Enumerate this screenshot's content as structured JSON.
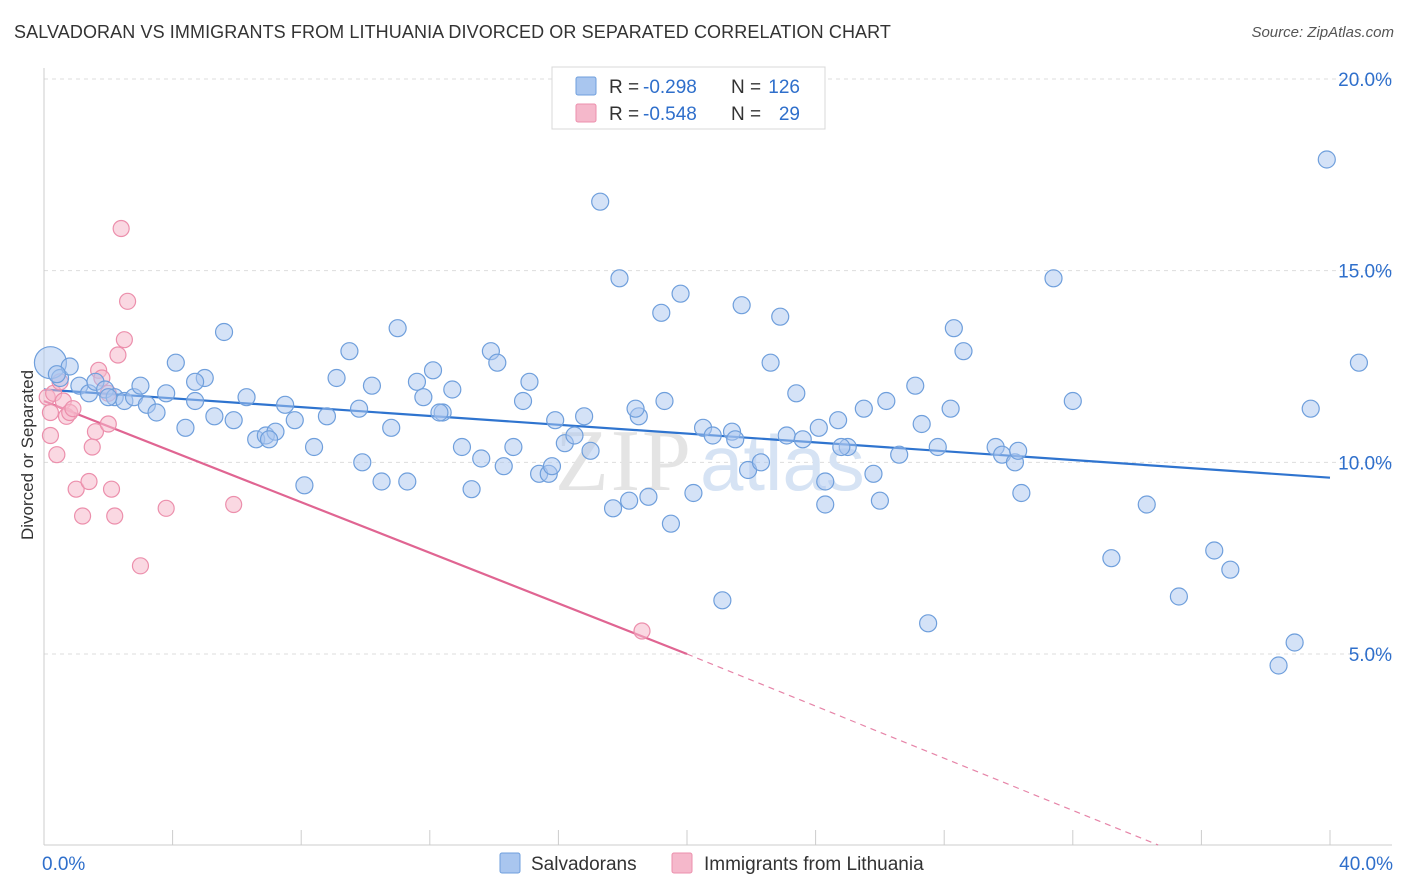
{
  "header": {
    "title": "SALVADORAN VS IMMIGRANTS FROM LITHUANIA DIVORCED OR SEPARATED CORRELATION CHART",
    "source": "Source: ZipAtlas.com"
  },
  "legend_top": {
    "rows": [
      {
        "r_label": "R =",
        "r_value": "-0.298",
        "n_label": "N =",
        "n_value": "126"
      },
      {
        "r_label": "R =",
        "r_value": "-0.548",
        "n_label": "N =",
        "n_value": "29"
      }
    ]
  },
  "legend_bottom": {
    "items": [
      "Salvadorans",
      "Immigrants from Lithuania"
    ]
  },
  "watermark": {
    "zip": "ZIP",
    "atlas": "atlas"
  },
  "colors": {
    "blue_fill": "#a9c6ef",
    "blue_stroke": "#6f9fdc",
    "blue_line": "#2f74cf",
    "pink_fill": "#f5b8cb",
    "pink_stroke": "#ec8fac",
    "pink_line": "#e06592",
    "value_text": "#2f6fcb",
    "grid": "#dddddd"
  },
  "chart_data": {
    "type": "scatter",
    "title": "SALVADORAN VS IMMIGRANTS FROM LITHUANIA DIVORCED OR SEPARATED CORRELATION CHART",
    "xlabel": "",
    "ylabel": "Divorced or Separated",
    "xlim": [
      0,
      40
    ],
    "ylim": [
      0,
      20.5
    ],
    "x_tick_labels": [
      "0.0%",
      "40.0%"
    ],
    "y_ticks": [
      5,
      10,
      15,
      20
    ],
    "y_tick_labels": [
      "5.0%",
      "10.0%",
      "15.0%",
      "20.0%"
    ],
    "grid": true,
    "legend_position": "bottom",
    "series": [
      {
        "name": "Salvadorans",
        "color": "#a9c6ef",
        "trend": {
          "x": [
            0,
            40
          ],
          "y": [
            11.9,
            9.6
          ],
          "style": "solid"
        },
        "points": [
          [
            0.2,
            12.6
          ],
          [
            0.5,
            12.2
          ],
          [
            0.8,
            12.5
          ],
          [
            1.1,
            12.0
          ],
          [
            1.4,
            11.8
          ],
          [
            1.6,
            12.1
          ],
          [
            1.9,
            11.9
          ],
          [
            2.2,
            11.7
          ],
          [
            2.5,
            11.6
          ],
          [
            2.8,
            11.7
          ],
          [
            3.0,
            12.0
          ],
          [
            3.2,
            11.5
          ],
          [
            3.5,
            11.3
          ],
          [
            3.8,
            11.8
          ],
          [
            4.1,
            12.6
          ],
          [
            4.4,
            10.9
          ],
          [
            4.7,
            11.6
          ],
          [
            5.0,
            12.2
          ],
          [
            5.3,
            11.2
          ],
          [
            5.6,
            13.4
          ],
          [
            5.9,
            11.1
          ],
          [
            6.3,
            11.7
          ],
          [
            6.6,
            10.6
          ],
          [
            6.9,
            10.7
          ],
          [
            7.2,
            10.8
          ],
          [
            7.5,
            11.5
          ],
          [
            7.8,
            11.1
          ],
          [
            8.1,
            9.4
          ],
          [
            8.4,
            10.4
          ],
          [
            8.8,
            11.2
          ],
          [
            9.1,
            12.2
          ],
          [
            9.5,
            12.9
          ],
          [
            9.9,
            10.0
          ],
          [
            10.2,
            12.0
          ],
          [
            10.5,
            9.5
          ],
          [
            10.8,
            10.9
          ],
          [
            11.0,
            13.5
          ],
          [
            11.3,
            9.5
          ],
          [
            11.6,
            12.1
          ],
          [
            11.8,
            11.7
          ],
          [
            12.1,
            12.4
          ],
          [
            12.4,
            11.3
          ],
          [
            12.7,
            11.9
          ],
          [
            13.0,
            10.4
          ],
          [
            13.3,
            9.3
          ],
          [
            13.6,
            10.1
          ],
          [
            13.9,
            12.9
          ],
          [
            14.1,
            12.6
          ],
          [
            14.3,
            9.9
          ],
          [
            14.6,
            10.4
          ],
          [
            14.9,
            11.6
          ],
          [
            15.1,
            12.1
          ],
          [
            15.4,
            9.7
          ],
          [
            15.7,
            9.7
          ],
          [
            15.9,
            11.1
          ],
          [
            16.2,
            10.5
          ],
          [
            16.5,
            10.7
          ],
          [
            16.8,
            11.2
          ],
          [
            17.0,
            10.3
          ],
          [
            17.3,
            16.8
          ],
          [
            17.7,
            8.8
          ],
          [
            17.9,
            14.8
          ],
          [
            18.2,
            9.0
          ],
          [
            18.5,
            11.2
          ],
          [
            18.8,
            9.1
          ],
          [
            19.2,
            13.9
          ],
          [
            19.3,
            11.6
          ],
          [
            19.5,
            8.4
          ],
          [
            19.8,
            14.4
          ],
          [
            20.2,
            9.2
          ],
          [
            20.5,
            10.9
          ],
          [
            20.8,
            10.7
          ],
          [
            21.1,
            6.4
          ],
          [
            21.4,
            10.8
          ],
          [
            21.7,
            14.1
          ],
          [
            21.9,
            9.8
          ],
          [
            22.3,
            10.0
          ],
          [
            22.6,
            12.6
          ],
          [
            22.9,
            13.8
          ],
          [
            23.1,
            10.7
          ],
          [
            23.4,
            11.8
          ],
          [
            23.6,
            10.6
          ],
          [
            24.1,
            10.9
          ],
          [
            24.3,
            9.5
          ],
          [
            24.3,
            8.9
          ],
          [
            24.7,
            11.1
          ],
          [
            25.0,
            10.4
          ],
          [
            25.5,
            11.4
          ],
          [
            25.8,
            9.7
          ],
          [
            26.0,
            9.0
          ],
          [
            26.2,
            11.6
          ],
          [
            26.6,
            10.2
          ],
          [
            27.1,
            12.0
          ],
          [
            27.5,
            5.8
          ],
          [
            27.8,
            10.4
          ],
          [
            28.2,
            11.4
          ],
          [
            28.3,
            13.5
          ],
          [
            28.6,
            12.9
          ],
          [
            29.6,
            10.4
          ],
          [
            29.8,
            10.2
          ],
          [
            30.2,
            10.0
          ],
          [
            30.4,
            9.2
          ],
          [
            31.4,
            14.8
          ],
          [
            32.0,
            11.6
          ],
          [
            33.2,
            7.5
          ],
          [
            34.3,
            8.9
          ],
          [
            35.3,
            6.5
          ],
          [
            36.4,
            7.7
          ],
          [
            36.9,
            7.2
          ],
          [
            38.4,
            4.7
          ],
          [
            38.9,
            5.3
          ],
          [
            39.4,
            11.4
          ],
          [
            39.9,
            17.9
          ],
          [
            40.9,
            12.6
          ],
          [
            0.4,
            12.3
          ],
          [
            2.0,
            11.7
          ],
          [
            4.7,
            12.1
          ],
          [
            7.0,
            10.6
          ],
          [
            9.8,
            11.4
          ],
          [
            12.3,
            11.3
          ],
          [
            15.8,
            9.9
          ],
          [
            18.4,
            11.4
          ],
          [
            21.5,
            10.6
          ],
          [
            24.8,
            10.4
          ],
          [
            27.3,
            11.0
          ],
          [
            30.3,
            10.3
          ]
        ]
      },
      {
        "name": "Immigrants from Lithuania",
        "color": "#f5b8cb",
        "trend": {
          "x": [
            0,
            20
          ],
          "y": [
            11.6,
            5.0
          ],
          "dashed_extension_to": [
            40,
            -1.8
          ],
          "style": "solid"
        },
        "points": [
          [
            0.1,
            11.7
          ],
          [
            0.2,
            11.3
          ],
          [
            0.2,
            10.7
          ],
          [
            0.3,
            11.8
          ],
          [
            0.4,
            10.2
          ],
          [
            0.5,
            12.1
          ],
          [
            0.6,
            11.6
          ],
          [
            0.7,
            11.2
          ],
          [
            0.8,
            11.3
          ],
          [
            0.9,
            11.4
          ],
          [
            1.0,
            9.3
          ],
          [
            1.2,
            8.6
          ],
          [
            1.4,
            9.5
          ],
          [
            1.5,
            10.4
          ],
          [
            1.6,
            10.8
          ],
          [
            1.7,
            12.4
          ],
          [
            1.8,
            12.2
          ],
          [
            2.0,
            11.8
          ],
          [
            2.0,
            11.0
          ],
          [
            2.1,
            9.3
          ],
          [
            2.2,
            8.6
          ],
          [
            2.3,
            12.8
          ],
          [
            2.4,
            16.1
          ],
          [
            2.5,
            13.2
          ],
          [
            2.6,
            14.2
          ],
          [
            3.0,
            7.3
          ],
          [
            3.8,
            8.8
          ],
          [
            5.9,
            8.9
          ],
          [
            18.6,
            5.6
          ]
        ]
      }
    ]
  }
}
